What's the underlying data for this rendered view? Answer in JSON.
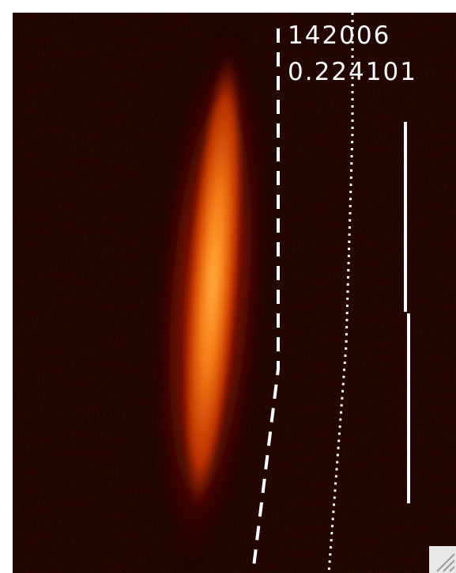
{
  "image": {
    "description_colormap": "hot",
    "background_color": "#050000",
    "beam_colors": [
      "#3a0500",
      "#8c1400",
      "#d33a00",
      "#f57a14",
      "#ffb040"
    ]
  },
  "readouts": {
    "value_1": "142006",
    "value_2": "0.224101"
  },
  "overlay_lines": {
    "dashed_color": "#ffffff",
    "dotted_color": "#ffffff",
    "solid_color": "#ffffff"
  },
  "icons": {
    "resize_grip": "resize-grip-icon"
  }
}
